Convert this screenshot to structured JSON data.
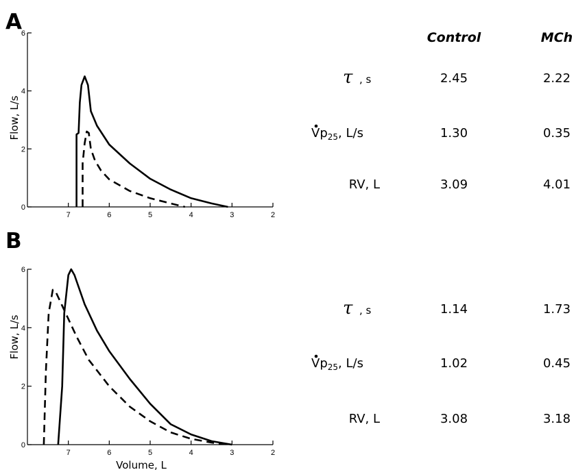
{
  "chart_data": [
    {
      "panel": "A",
      "type": "line",
      "xlabel": "",
      "ylabel": "Flow, L/s",
      "xlim": [
        8,
        2
      ],
      "ylim": [
        0,
        6
      ],
      "x_reversed": true,
      "xticks": [
        "7",
        "6",
        "5",
        "4",
        "3",
        "2"
      ],
      "yticks": [
        "0",
        "2",
        "4",
        "6"
      ],
      "series": [
        {
          "style": "solid",
          "points": [
            [
              6.8,
              0
            ],
            [
              6.8,
              2.5
            ],
            [
              6.75,
              2.55
            ],
            [
              6.72,
              3.6
            ],
            [
              6.68,
              4.2
            ],
            [
              6.6,
              4.5
            ],
            [
              6.52,
              4.2
            ],
            [
              6.45,
              3.3
            ],
            [
              6.3,
              2.8
            ],
            [
              6.0,
              2.15
            ],
            [
              5.5,
              1.5
            ],
            [
              5.0,
              0.97
            ],
            [
              4.5,
              0.6
            ],
            [
              4.0,
              0.3
            ],
            [
              3.5,
              0.12
            ],
            [
              3.1,
              0
            ]
          ]
        },
        {
          "style": "dashed",
          "points": [
            [
              6.65,
              0
            ],
            [
              6.65,
              1.5
            ],
            [
              6.6,
              2.2
            ],
            [
              6.55,
              2.6
            ],
            [
              6.5,
              2.55
            ],
            [
              6.45,
              2.0
            ],
            [
              6.35,
              1.6
            ],
            [
              6.2,
              1.25
            ],
            [
              6.0,
              0.95
            ],
            [
              5.5,
              0.55
            ],
            [
              5.0,
              0.3
            ],
            [
              4.5,
              0.12
            ],
            [
              4.15,
              0
            ]
          ]
        }
      ],
      "table": {
        "headers": [
          "Control",
          "MCh"
        ],
        "rows": [
          {
            "symbol": "τ",
            "unit": "s",
            "values": [
              "2.45",
              "2.22"
            ]
          },
          {
            "symbol": "V̇p",
            "sub": "25",
            "unit": "L/s",
            "values": [
              "1.30",
              "0.35"
            ]
          },
          {
            "label": "RV, L",
            "values": [
              "3.09",
              "4.01"
            ]
          }
        ]
      }
    },
    {
      "panel": "B",
      "type": "line",
      "xlabel": "Volume, L",
      "ylabel": "Flow, L/s",
      "xlim": [
        8,
        2
      ],
      "ylim": [
        0,
        6
      ],
      "x_reversed": true,
      "xticks": [
        "7",
        "6",
        "5",
        "4",
        "3",
        "2"
      ],
      "yticks": [
        "0",
        "2",
        "4",
        "6"
      ],
      "series": [
        {
          "style": "solid",
          "points": [
            [
              7.25,
              0
            ],
            [
              7.15,
              2.0
            ],
            [
              7.1,
              4.5
            ],
            [
              7.0,
              5.8
            ],
            [
              6.93,
              6.0
            ],
            [
              6.85,
              5.8
            ],
            [
              6.6,
              4.8
            ],
            [
              6.3,
              3.9
            ],
            [
              6.0,
              3.2
            ],
            [
              5.5,
              2.25
            ],
            [
              5.0,
              1.4
            ],
            [
              4.5,
              0.7
            ],
            [
              4.0,
              0.35
            ],
            [
              3.5,
              0.12
            ],
            [
              3.0,
              0
            ]
          ]
        },
        {
          "style": "dashed",
          "points": [
            [
              7.6,
              0
            ],
            [
              7.55,
              2.5
            ],
            [
              7.48,
              4.5
            ],
            [
              7.38,
              5.3
            ],
            [
              7.3,
              5.2
            ],
            [
              7.1,
              4.6
            ],
            [
              6.8,
              3.7
            ],
            [
              6.5,
              2.9
            ],
            [
              6.0,
              2.0
            ],
            [
              5.5,
              1.3
            ],
            [
              5.0,
              0.8
            ],
            [
              4.5,
              0.42
            ],
            [
              4.0,
              0.2
            ],
            [
              3.5,
              0.07
            ],
            [
              3.05,
              0
            ]
          ]
        }
      ],
      "table": {
        "headers": [],
        "rows": [
          {
            "symbol": "τ",
            "unit": "s",
            "values": [
              "1.14",
              "1.73"
            ]
          },
          {
            "symbol": "V̇p",
            "sub": "25",
            "unit": "L/s",
            "values": [
              "1.02",
              "0.45"
            ]
          },
          {
            "label": "RV, L",
            "values": [
              "3.08",
              "3.18"
            ]
          }
        ]
      }
    }
  ],
  "labels": {
    "panel_a": "A",
    "panel_b": "B",
    "header_control": "Control",
    "header_mch": "MCh",
    "ylabel": "Flow, L/s",
    "xlabel": "Volume, L",
    "tau": "τ",
    "tau_unit": "s",
    "vp_main": "V",
    "vp_p": "p",
    "vp_sub": "25",
    "vp_unit": ", L/s",
    "rv": "RV, L"
  }
}
